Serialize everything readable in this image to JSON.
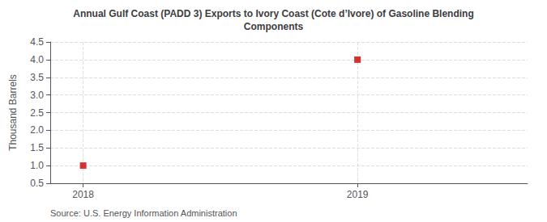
{
  "chart_data": {
    "type": "scatter",
    "title": "Annual Gulf Coast (PADD 3) Exports to Ivory Coast (Cote d’Ivore) of Gasoline Blending\nComponents",
    "ylabel": "Thousand Barrels",
    "annotation": "Source: U.S. Energy Information Administration",
    "x": [
      2018,
      2019
    ],
    "values": [
      1.0,
      4.0
    ],
    "color": "#cc0000",
    "marker": "square",
    "xlim": [
      2017.88,
      2019.62
    ],
    "ylim": [
      0.5,
      4.5
    ],
    "xticks": [
      2018,
      2019
    ],
    "yticks": [
      0.5,
      {
        "value": 1,
        "label": "1.0"
      },
      1.5,
      {
        "value": 2,
        "label": "2.0"
      },
      2.5,
      {
        "value": 3,
        "label": "3.0"
      },
      3.5,
      {
        "value": 4,
        "label": "4.0"
      },
      4.5
    ],
    "grid": true
  }
}
